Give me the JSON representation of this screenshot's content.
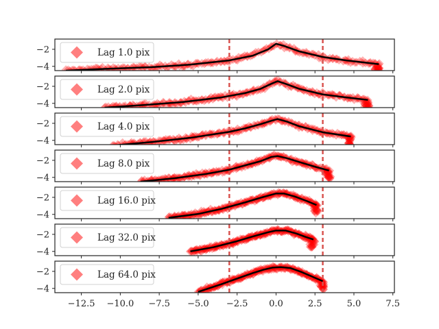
{
  "chart_data": {
    "type": "scatter",
    "xlim": [
      -14.2,
      7.6
    ],
    "ylim": [
      -4.5,
      -0.8
    ],
    "x_ticks": [
      -12.5,
      -10.0,
      -7.5,
      -5.0,
      -2.5,
      0.0,
      2.5,
      5.0,
      7.5
    ],
    "x_tick_labels": [
      "−12.5",
      "−10.0",
      "−7.5",
      "−5.0",
      "−2.5",
      "0.0",
      "2.5",
      "5.0",
      "7.5"
    ],
    "y_ticks": [
      -2,
      -4
    ],
    "y_tick_labels": [
      "−2",
      "−4"
    ],
    "vlines": [
      -3.0,
      3.0
    ],
    "grid": false,
    "legend_position": "upper-left",
    "marker_color": "#ff0000",
    "fit_color": "#000000",
    "vline_color": "#d9534f",
    "panels": [
      {
        "name": "Lag 1.0 pix",
        "x_range": [
          -13.5,
          6.6
        ],
        "fit": [
          [
            -13.5,
            -4.5
          ],
          [
            -11.0,
            -4.3
          ],
          [
            -8.0,
            -4.1
          ],
          [
            -5.5,
            -3.8
          ],
          [
            -3.0,
            -3.3
          ],
          [
            -1.5,
            -2.75
          ],
          [
            -0.5,
            -2.0
          ],
          [
            0.0,
            -1.35
          ],
          [
            0.5,
            -1.6
          ],
          [
            1.5,
            -2.25
          ],
          [
            3.0,
            -2.9
          ],
          [
            4.5,
            -3.3
          ],
          [
            6.6,
            -3.75
          ]
        ]
      },
      {
        "name": "Lag 2.0 pix",
        "x_range": [
          -11.0,
          5.9
        ],
        "fit": [
          [
            -11.0,
            -4.5
          ],
          [
            -8.5,
            -4.2
          ],
          [
            -6.0,
            -3.85
          ],
          [
            -3.5,
            -3.3
          ],
          [
            -2.0,
            -2.8
          ],
          [
            -1.0,
            -2.3
          ],
          [
            -0.3,
            -1.7
          ],
          [
            0.1,
            -1.4
          ],
          [
            0.6,
            -1.7
          ],
          [
            1.5,
            -2.3
          ],
          [
            3.0,
            -2.95
          ],
          [
            4.5,
            -3.3
          ],
          [
            5.9,
            -3.6
          ]
        ]
      },
      {
        "name": "Lag 4.0 pix",
        "x_range": [
          -10.5,
          4.8
        ],
        "fit": [
          [
            -10.5,
            -4.6
          ],
          [
            -8.0,
            -4.2
          ],
          [
            -5.5,
            -3.7
          ],
          [
            -3.0,
            -3.0
          ],
          [
            -2.0,
            -2.6
          ],
          [
            -1.0,
            -2.1
          ],
          [
            -0.3,
            -1.7
          ],
          [
            0.1,
            -1.5
          ],
          [
            0.7,
            -1.8
          ],
          [
            1.5,
            -2.35
          ],
          [
            3.0,
            -3.05
          ],
          [
            4.8,
            -3.55
          ]
        ]
      },
      {
        "name": "Lag 8.0 pix",
        "x_range": [
          -8.7,
          3.4
        ],
        "fit": [
          [
            -8.7,
            -4.5
          ],
          [
            -6.5,
            -4.1
          ],
          [
            -4.5,
            -3.6
          ],
          [
            -3.0,
            -3.1
          ],
          [
            -2.0,
            -2.6
          ],
          [
            -1.0,
            -2.1
          ],
          [
            -0.3,
            -1.6
          ],
          [
            0.1,
            -1.5
          ],
          [
            0.7,
            -1.75
          ],
          [
            1.5,
            -2.2
          ],
          [
            2.5,
            -2.75
          ],
          [
            3.4,
            -3.2
          ]
        ]
      },
      {
        "name": "Lag 16.0 pix",
        "x_range": [
          -6.9,
          2.6
        ],
        "fit": [
          [
            -6.9,
            -4.4
          ],
          [
            -5.0,
            -3.95
          ],
          [
            -3.5,
            -3.35
          ],
          [
            -2.0,
            -2.6
          ],
          [
            -1.0,
            -2.05
          ],
          [
            -0.3,
            -1.7
          ],
          [
            0.0,
            -1.55
          ],
          [
            0.5,
            -1.55
          ],
          [
            1.2,
            -1.9
          ],
          [
            2.0,
            -2.45
          ],
          [
            2.6,
            -2.9
          ]
        ]
      },
      {
        "name": "Lag 32.0 pix",
        "x_range": [
          -5.5,
          2.4
        ],
        "fit": [
          [
            -5.5,
            -4.0
          ],
          [
            -4.0,
            -3.5
          ],
          [
            -2.5,
            -2.8
          ],
          [
            -1.5,
            -2.25
          ],
          [
            -0.5,
            -1.75
          ],
          [
            0.0,
            -1.55
          ],
          [
            0.6,
            -1.55
          ],
          [
            1.3,
            -1.9
          ],
          [
            1.9,
            -2.3
          ],
          [
            2.4,
            -2.6
          ]
        ]
      },
      {
        "name": "Lag 64.0 pix",
        "x_range": [
          -5.0,
          3.0
        ],
        "fit": [
          [
            -5.0,
            -4.4
          ],
          [
            -3.5,
            -3.5
          ],
          [
            -2.5,
            -2.85
          ],
          [
            -1.5,
            -2.2
          ],
          [
            -0.8,
            -1.8
          ],
          [
            -0.2,
            -1.55
          ],
          [
            0.3,
            -1.5
          ],
          [
            0.9,
            -1.6
          ],
          [
            1.6,
            -2.05
          ],
          [
            2.3,
            -2.6
          ],
          [
            3.0,
            -3.15
          ]
        ]
      }
    ]
  }
}
